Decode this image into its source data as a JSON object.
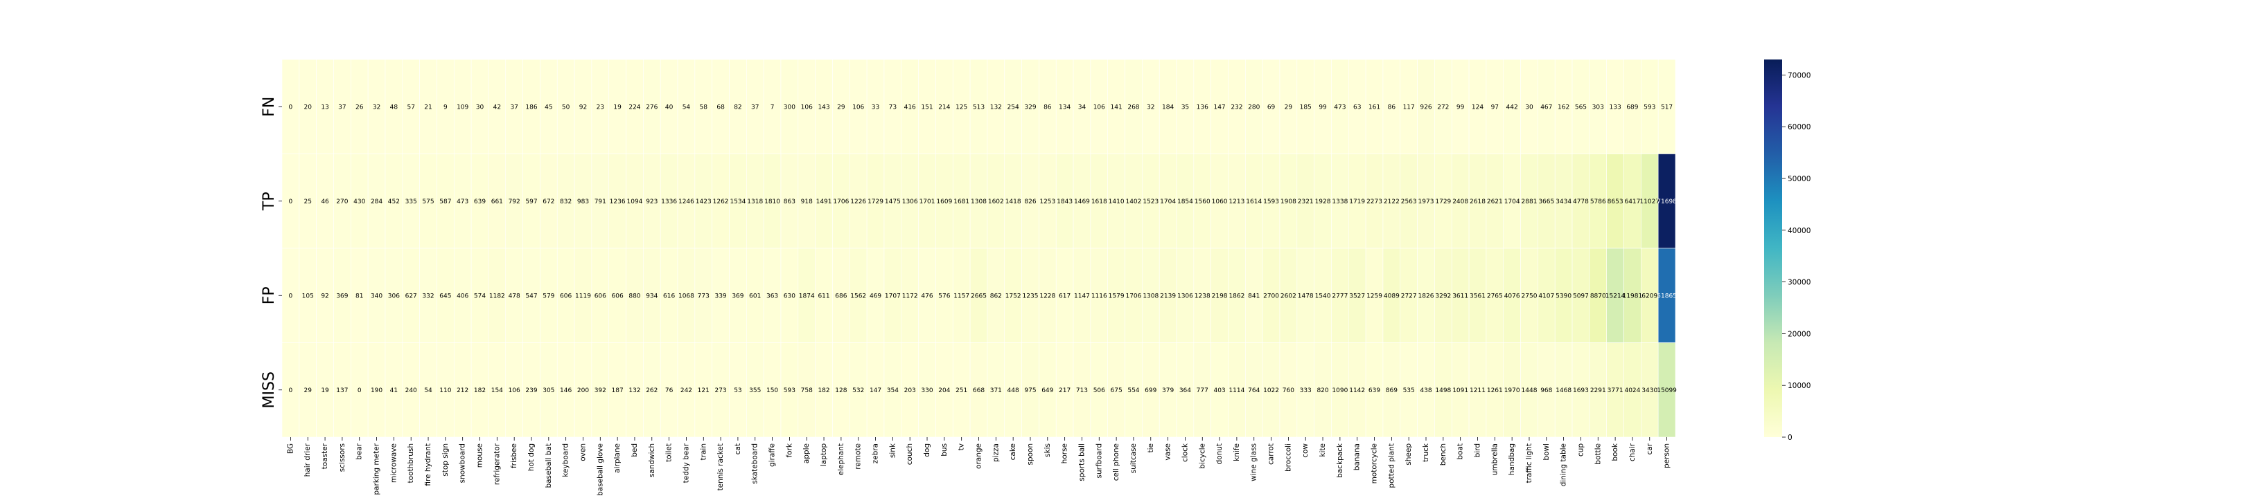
{
  "chart_data": {
    "type": "heatmap",
    "rows": [
      "FN",
      "TP",
      "FP",
      "MISS"
    ],
    "columns": [
      "BG",
      "hair drier",
      "toaster",
      "scissors",
      "bear",
      "parking meter",
      "microwave",
      "toothbrush",
      "fire hydrant",
      "stop sign",
      "snowboard",
      "mouse",
      "refrigerator",
      "frisbee",
      "hot dog",
      "baseball bat",
      "keyboard",
      "oven",
      "baseball glove",
      "airplane",
      "bed",
      "sandwich",
      "toilet",
      "teddy bear",
      "train",
      "tennis racket",
      "cat",
      "skateboard",
      "giraffe",
      "fork",
      "apple",
      "laptop",
      "elephant",
      "remote",
      "zebra",
      "sink",
      "couch",
      "dog",
      "bus",
      "tv",
      "orange",
      "pizza",
      "cake",
      "spoon",
      "skis",
      "horse",
      "sports ball",
      "surfboard",
      "cell phone",
      "suitcase",
      "tie",
      "vase",
      "clock",
      "bicycle",
      "donut",
      "knife",
      "wine glass",
      "carrot",
      "broccoli",
      "cow",
      "kite",
      "backpack",
      "banana",
      "motorcycle",
      "potted plant",
      "sheep",
      "truck",
      "bench",
      "boat",
      "bird",
      "umbrella",
      "handbag",
      "traffic light",
      "bowl",
      "dining table",
      "cup",
      "bottle",
      "book",
      "chair",
      "car",
      "person"
    ],
    "values": [
      [
        0,
        20,
        13,
        37,
        26,
        32,
        48,
        57,
        21,
        9,
        109,
        30,
        42,
        37,
        186,
        45,
        50,
        92,
        23,
        19,
        224,
        276,
        40,
        54,
        58,
        68,
        82,
        37,
        7,
        300,
        106,
        143,
        29,
        106,
        33,
        73,
        416,
        151,
        214,
        125,
        513,
        132,
        254,
        329,
        86,
        134,
        34,
        106,
        141,
        268,
        32,
        184,
        35,
        136,
        147,
        232,
        280,
        69,
        29,
        185,
        99,
        473,
        63,
        161,
        86,
        117,
        926,
        272,
        99,
        124,
        97,
        442,
        30,
        467,
        162,
        565,
        303,
        133,
        689,
        593,
        517
      ],
      [
        0,
        25,
        46,
        270,
        430,
        284,
        452,
        335,
        575,
        587,
        473,
        639,
        661,
        792,
        597,
        672,
        832,
        983,
        791,
        1236,
        1094,
        923,
        1336,
        1246,
        1423,
        1262,
        1534,
        1318,
        1810,
        863,
        918,
        1491,
        1706,
        1226,
        1729,
        1475,
        1306,
        1701,
        1609,
        1681,
        1308,
        1602,
        1418,
        826,
        1253,
        1843,
        1469,
        1618,
        1410,
        1402,
        1523,
        1704,
        1854,
        1560,
        1060,
        1213,
        1614,
        1593,
        1908,
        2321,
        1928,
        1338,
        1719,
        2273,
        2122,
        2563,
        1973,
        1729,
        2408,
        2618,
        2621,
        1704,
        2881,
        3665,
        3434,
        4778,
        5786,
        8653,
        6417,
        11027,
        71698
      ],
      [
        0,
        105,
        92,
        369,
        81,
        340,
        306,
        627,
        332,
        645,
        406,
        574,
        1182,
        478,
        547,
        579,
        606,
        1119,
        606,
        606,
        880,
        934,
        616,
        1068,
        773,
        339,
        369,
        601,
        363,
        630,
        1874,
        611,
        686,
        1562,
        469,
        1707,
        1172,
        476,
        576,
        1157,
        2665,
        862,
        1752,
        1235,
        1228,
        617,
        1147,
        1116,
        1579,
        1706,
        1308,
        2139,
        1306,
        1238,
        2198,
        1862,
        841,
        2700,
        2602,
        1478,
        1540,
        2777,
        3527,
        1259,
        4089,
        2727,
        1826,
        3292,
        3611,
        3561,
        2765,
        4076,
        2750,
        4107,
        5390,
        5097,
        8870,
        15214,
        11981,
        6209,
        51865
      ],
      [
        0,
        29,
        19,
        137,
        0,
        190,
        41,
        240,
        54,
        110,
        212,
        182,
        154,
        106,
        239,
        305,
        146,
        200,
        392,
        187,
        132,
        262,
        76,
        242,
        121,
        273,
        53,
        355,
        150,
        593,
        758,
        182,
        128,
        532,
        147,
        354,
        203,
        330,
        204,
        251,
        668,
        371,
        448,
        975,
        649,
        217,
        713,
        506,
        675,
        554,
        699,
        379,
        364,
        777,
        403,
        1114,
        764,
        1022,
        760,
        333,
        820,
        1090,
        1142,
        639,
        869,
        535,
        438,
        1498,
        1091,
        1211,
        1261,
        1970,
        1448,
        968,
        1468,
        1693,
        2291,
        3771,
        4024,
        3430,
        15099
      ]
    ],
    "vmin": 0,
    "vmax": 73000,
    "colorbar_ticks": [
      0,
      10000,
      20000,
      30000,
      40000,
      50000,
      60000,
      70000
    ],
    "colormap": "YlGnBu",
    "colormap_stops": [
      "#ffffd9",
      "#edf8b1",
      "#c7e9b4",
      "#7fcdbb",
      "#41b6c4",
      "#1d91c0",
      "#225ea8",
      "#253494",
      "#081d58"
    ]
  }
}
